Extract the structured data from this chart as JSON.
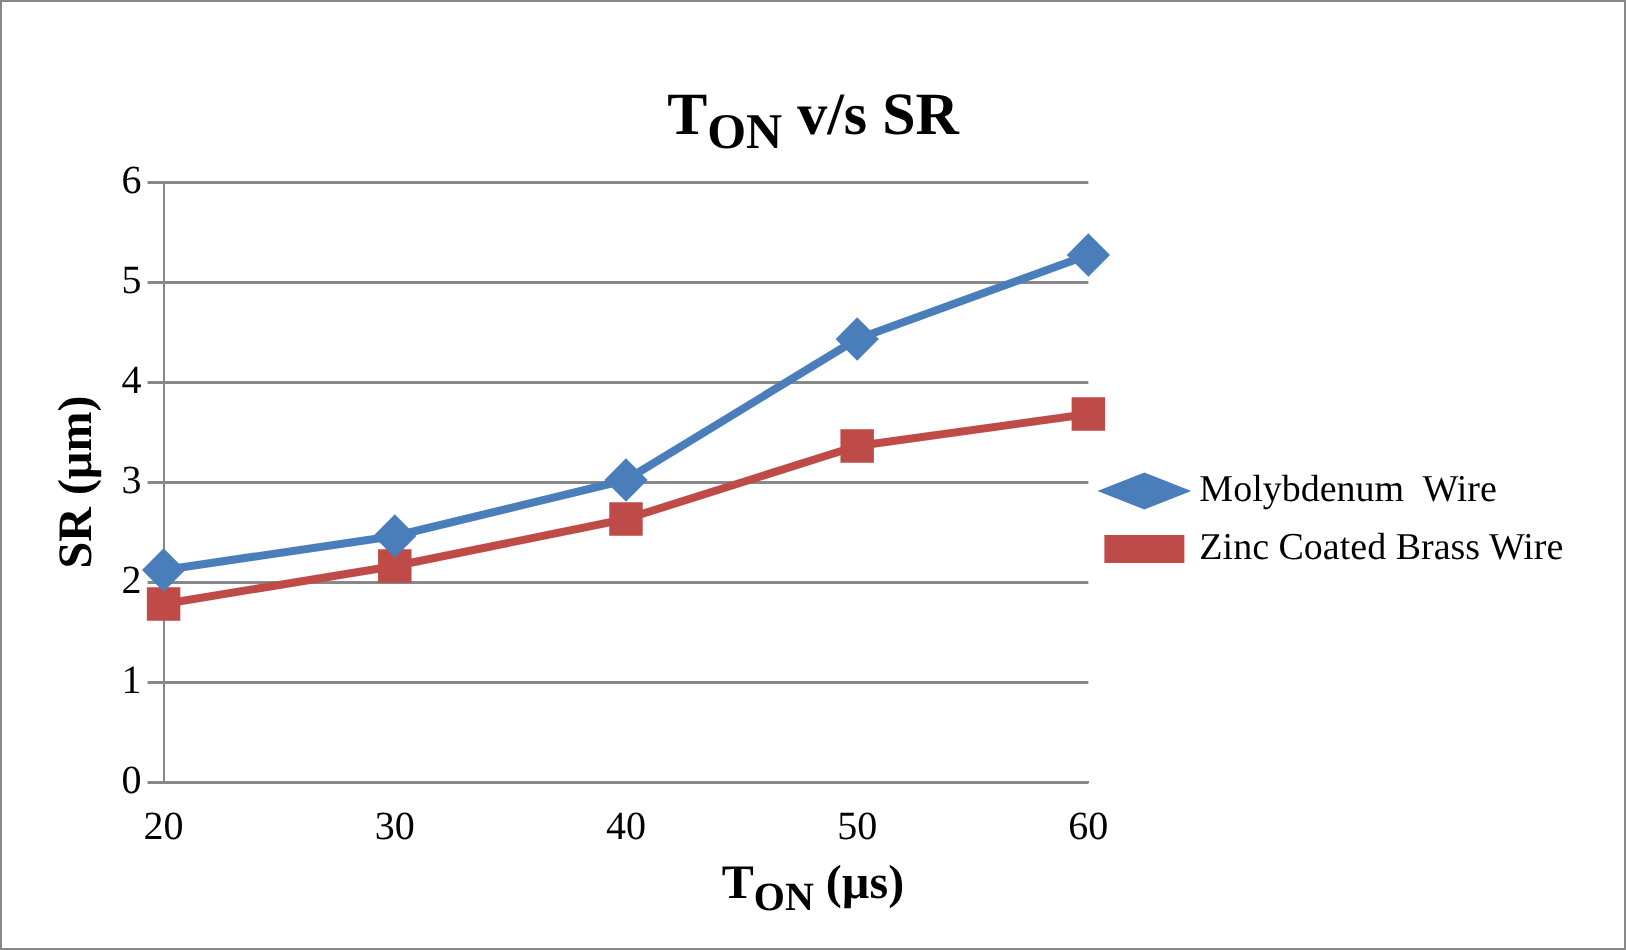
{
  "chart_data": {
    "type": "line",
    "title": "T$_{ON}$ v/s SR",
    "xlabel": "T$_{ON}$ (µs)",
    "ylabel": "SR (µm)",
    "categories": [
      "20",
      "30",
      "40",
      "50",
      "60"
    ],
    "series": [
      {
        "name": "Molybdenum  Wire",
        "color": "#4a7ebb",
        "marker": "diamond",
        "values": [
          2.12,
          2.46,
          3.02,
          4.43,
          5.27
        ]
      },
      {
        "name": "Zinc Coated Brass Wire",
        "color": "#be4b48",
        "marker": "square",
        "values": [
          1.78,
          2.16,
          2.63,
          3.36,
          3.68
        ]
      }
    ],
    "ylim": [
      0,
      6
    ],
    "yticks": [
      0,
      1,
      2,
      3,
      4,
      5,
      6
    ],
    "grid": "y",
    "legend": "right"
  }
}
